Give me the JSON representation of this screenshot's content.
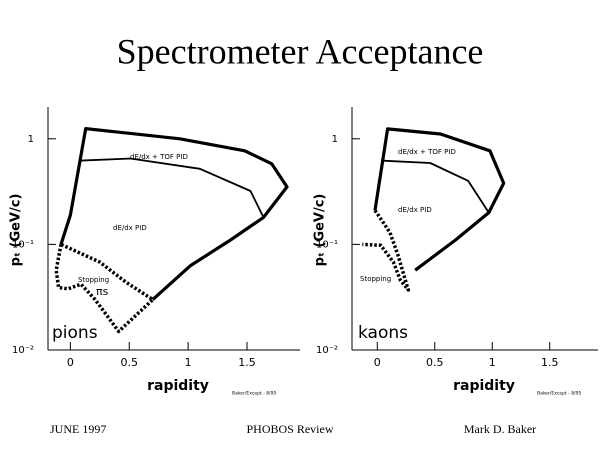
{
  "title": "Spectrometer Acceptance",
  "footer": {
    "left": "JUNE 1997",
    "center": "PHOBOS Review",
    "right": "Mark D. Baker"
  },
  "chart_data": [
    {
      "type": "line",
      "label": "pions",
      "xlabel": "rapidity",
      "ylabel": "pₜ (GeV/c)",
      "credit": "Baker/Except - 8/95",
      "annotations": [
        "dE/dx + TOF   PID",
        "dE/dx   PID",
        "Stopping",
        "πs"
      ],
      "xlim": [
        -0.19,
        1.95
      ],
      "ylim": [
        0.01,
        2
      ],
      "log_y": true,
      "xticks": [
        0,
        0.5,
        1,
        1.5
      ],
      "yticks": [
        {
          "value": 0.01,
          "label": "10⁻²"
        },
        {
          "value": 0.1,
          "label": "10⁻¹"
        },
        1
      ],
      "series": [
        {
          "style": "thick",
          "color": "#000",
          "x": [
            -0.08,
            0,
            0.13,
            0.93,
            1.48,
            1.71,
            1.84,
            1.64,
            1.36,
            1.02,
            0.7
          ],
          "values": [
            0.1,
            0.19,
            1.25,
            1.0,
            0.77,
            0.58,
            0.35,
            0.18,
            0.11,
            0.063,
            0.03
          ]
        },
        {
          "style": "thin",
          "color": "#000",
          "x": [
            0.07,
            0.51,
            1.1,
            1.53,
            1.64
          ],
          "values": [
            0.62,
            0.65,
            0.52,
            0.32,
            0.18
          ]
        },
        {
          "style": "dotted",
          "color": "#000",
          "x": [
            -0.08,
            -0.12,
            -0.1,
            -0.02,
            0.09,
            0.21,
            0.41,
            0.7,
            0.47,
            0.25,
            -0.08
          ],
          "values": [
            0.1,
            0.057,
            0.039,
            0.038,
            0.042,
            0.03,
            0.015,
            0.03,
            0.044,
            0.068,
            0.1
          ]
        }
      ]
    },
    {
      "type": "line",
      "label": "kaons",
      "xlabel": "rapidity",
      "ylabel": "pₜ (GeV/c)",
      "credit": "Baker/Except - 8/95",
      "annotations": [
        "dE/dx + TOF   PID",
        "dE/dx   PID",
        "Stopping"
      ],
      "xlim": [
        -0.22,
        1.92
      ],
      "ylim": [
        0.01,
        2
      ],
      "log_y": true,
      "xticks": [
        0,
        0.5,
        1,
        1.5
      ],
      "yticks": [
        {
          "value": 0.01,
          "label": "10⁻²"
        },
        {
          "value": 0.1,
          "label": "10⁻¹"
        },
        1
      ],
      "series": [
        {
          "style": "thick",
          "color": "#000",
          "x": [
            -0.02,
            0.09,
            0.55,
            0.98,
            1.1,
            0.97,
            0.68,
            0.33
          ],
          "values": [
            0.21,
            1.24,
            1.11,
            0.77,
            0.38,
            0.2,
            0.11,
            0.057
          ]
        },
        {
          "style": "thin",
          "color": "#000",
          "x": [
            0.05,
            0.46,
            0.79,
            0.97
          ],
          "values": [
            0.62,
            0.59,
            0.4,
            0.2
          ]
        },
        {
          "style": "dotted",
          "color": "#000",
          "x": [
            -0.02,
            0.11,
            0.18,
            0.27,
            0.2,
            0.14,
            0.03,
            -0.13
          ],
          "values": [
            0.21,
            0.13,
            0.079,
            0.037,
            0.046,
            0.068,
            0.098,
            0.1
          ]
        }
      ]
    }
  ]
}
